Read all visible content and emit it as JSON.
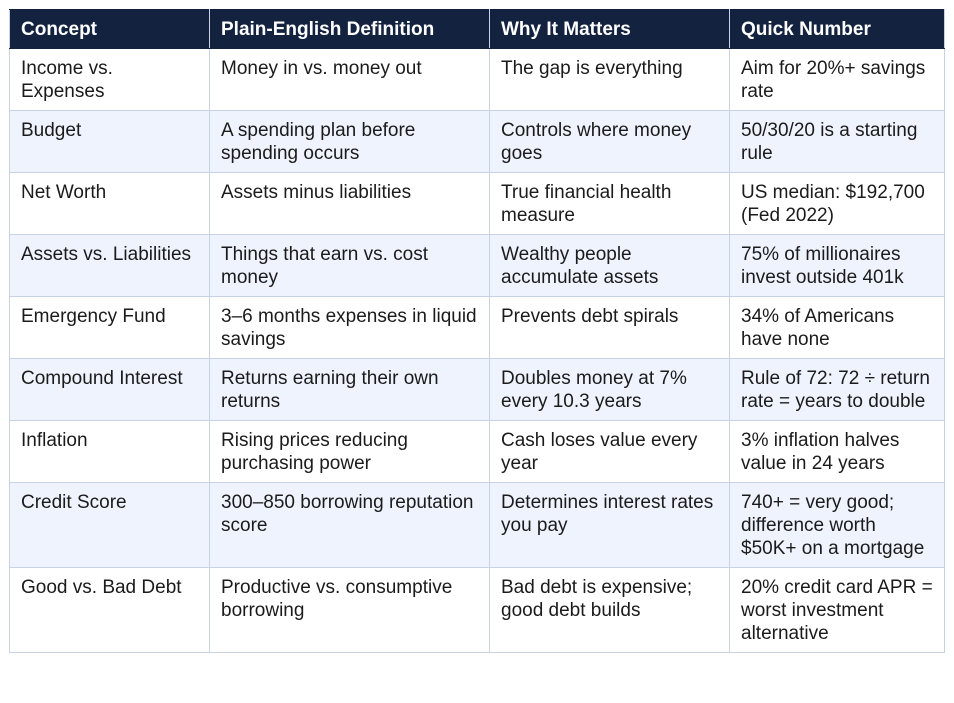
{
  "table": {
    "headers": [
      "Concept",
      "Plain-English Definition",
      "Why It Matters",
      "Quick Number"
    ],
    "rows": [
      [
        "Income vs. Expenses",
        "Money in vs. money out",
        "The gap is everything",
        "Aim for 20%+ savings rate"
      ],
      [
        "Budget",
        "A spending plan before spending occurs",
        "Controls where money goes",
        "50/30/20 is a starting rule"
      ],
      [
        "Net Worth",
        "Assets minus liabilities",
        "True financial health measure",
        "US median: $192,700 (Fed 2022)"
      ],
      [
        "Assets vs. Liabilities",
        "Things that earn vs. cost money",
        "Wealthy people accumulate assets",
        "75% of millionaires invest outside 401k"
      ],
      [
        "Emergency Fund",
        "3–6 months expenses in liquid savings",
        "Prevents debt spirals",
        "34% of Americans have none"
      ],
      [
        "Compound Interest",
        "Returns earning their own returns",
        "Doubles money at 7% every 10.3 years",
        "Rule of 72: 72 ÷ return rate = years to double"
      ],
      [
        "Inflation",
        "Rising prices reducing purchasing power",
        "Cash loses value every year",
        "3% inflation halves value in 24 years"
      ],
      [
        "Credit Score",
        "300–850 borrowing reputation score",
        "Determines interest rates you pay",
        "740+ = very good; difference worth $50K+ on a mortgage"
      ],
      [
        "Good vs. Bad Debt",
        "Productive vs. consumptive borrowing",
        "Bad debt is expensive; good debt builds",
        "20% credit card APR = worst investment alternative"
      ]
    ]
  },
  "colors": {
    "header_background": "#13233f",
    "header_text": "#ffffff",
    "row_alt_background": "#eef3fd",
    "border": "#c9d3e6"
  }
}
